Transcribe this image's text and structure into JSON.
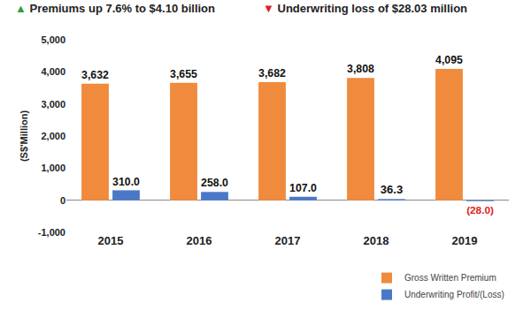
{
  "chart_data": {
    "type": "bar",
    "headlines": [
      {
        "icon": "▲",
        "text": "Premiums up 7.6% to $4.10 billion",
        "color": "#2e9e3e"
      },
      {
        "icon": "▼",
        "text": "Underwriting loss of $28.03 million",
        "color": "#e02020"
      }
    ],
    "y_label": "(S$'Million)",
    "categories": [
      "2015",
      "2016",
      "2017",
      "2018",
      "2019"
    ],
    "series": [
      {
        "name": "Gross Written Premium",
        "color": "#f08a3c",
        "values": [
          3632,
          3655,
          3682,
          3808,
          4095
        ],
        "value_labels": [
          "3,632",
          "3,655",
          "3,682",
          "3,808",
          "4,095"
        ]
      },
      {
        "name": "Underwriting Profit/(Loss)",
        "color": "#4a78c8",
        "values": [
          310.0,
          258.0,
          107.0,
          36.3,
          -28.0
        ],
        "value_labels": [
          "310.0",
          "258.0",
          "107.0",
          "36.3",
          "(28.0)"
        ]
      }
    ],
    "ylim": [
      -1000,
      5000
    ],
    "yticks": [
      {
        "value": -1000,
        "label": "-1,000"
      },
      0,
      {
        "value": 1000,
        "label": "1,000"
      },
      {
        "value": 2000,
        "label": "2,000"
      },
      {
        "value": 3000,
        "label": "3,000"
      },
      {
        "value": 4000,
        "label": "4,000"
      },
      {
        "value": 5000,
        "label": "5,000"
      }
    ],
    "grid": false,
    "legend": "bottom right",
    "data_labels": true
  }
}
